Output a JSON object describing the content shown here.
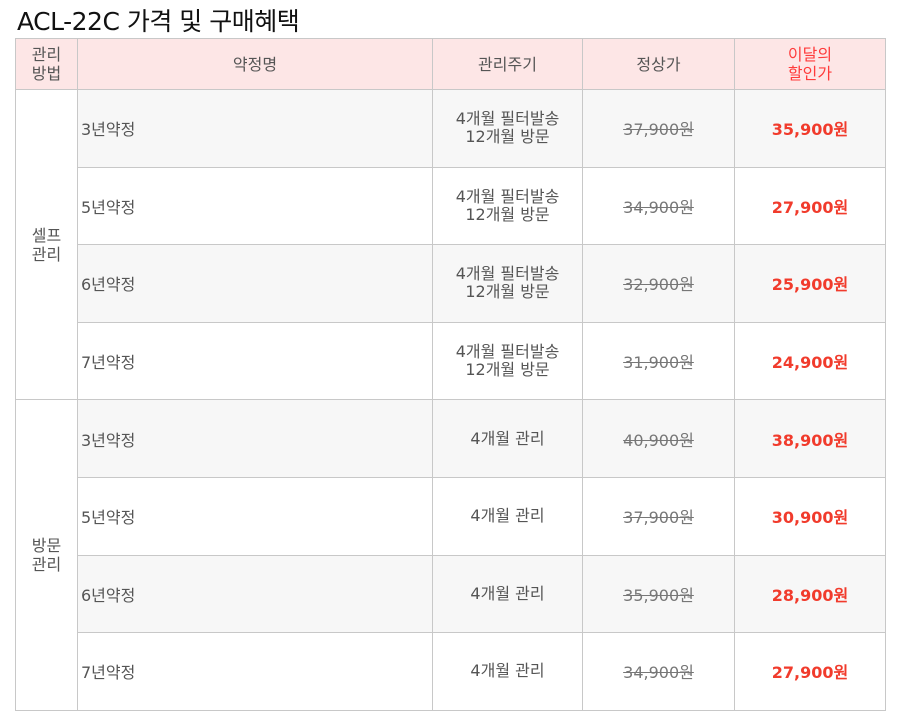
{
  "title": "ACL-22C 가격 및 구매혜택",
  "headers": {
    "method": [
      "관리",
      "방법"
    ],
    "plan": "약정명",
    "cycle": "관리주기",
    "regular": "정상가",
    "discount": [
      "이달의",
      "할인가"
    ]
  },
  "groups": [
    {
      "method": [
        "셀프",
        "관리"
      ],
      "rows": [
        {
          "plan": "3년약정",
          "cycle": [
            "4개월 필터발송",
            "12개월 방문"
          ],
          "regular": "37,900원",
          "discount": "35,900원"
        },
        {
          "plan": "5년약정",
          "cycle": [
            "4개월 필터발송",
            "12개월 방문"
          ],
          "regular": "34,900원",
          "discount": "27,900원"
        },
        {
          "plan": "6년약정",
          "cycle": [
            "4개월 필터발송",
            "12개월 방문"
          ],
          "regular": "32,900원",
          "discount": "25,900원"
        },
        {
          "plan": "7년약정",
          "cycle": [
            "4개월 필터발송",
            "12개월 방문"
          ],
          "regular": "31,900원",
          "discount": "24,900원"
        }
      ]
    },
    {
      "method": [
        "방문",
        "관리"
      ],
      "rows": [
        {
          "plan": "3년약정",
          "cycle": [
            "4개월 관리"
          ],
          "regular": "40,900원",
          "discount": "38,900원"
        },
        {
          "plan": "5년약정",
          "cycle": [
            "4개월 관리"
          ],
          "regular": "37,900원",
          "discount": "30,900원"
        },
        {
          "plan": "6년약정",
          "cycle": [
            "4개월 관리"
          ],
          "regular": "35,900원",
          "discount": "28,900원"
        },
        {
          "plan": "7년약정",
          "cycle": [
            "4개월 관리"
          ],
          "regular": "34,900원",
          "discount": "27,900원"
        }
      ]
    }
  ]
}
